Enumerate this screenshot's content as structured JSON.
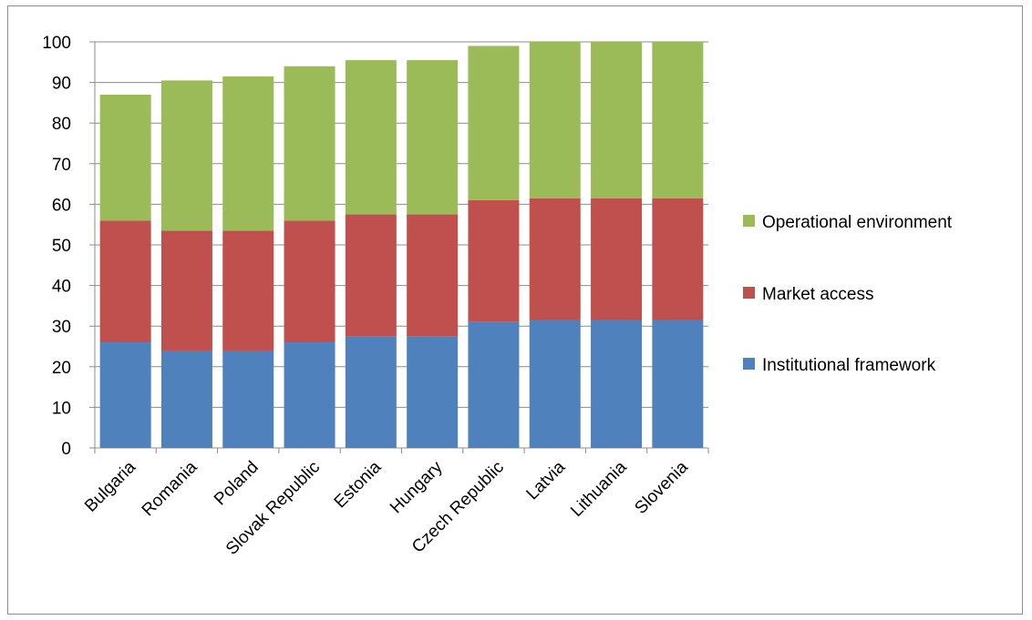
{
  "chart_data": {
    "type": "bar",
    "stacked": true,
    "categories": [
      "Bulgaria",
      "Romania",
      "Poland",
      "Slovak Republic",
      "Estonia",
      "Hungary",
      "Czech Republic",
      "Latvia",
      "Lithuania",
      "Slovenia"
    ],
    "series": [
      {
        "name": "Institutional  framework",
        "color": "#4f81bd",
        "values": [
          26,
          24,
          24,
          26,
          27.5,
          27.5,
          31,
          31.5,
          31.5,
          31.5
        ]
      },
      {
        "name": "Market access",
        "color": "#c0504d",
        "values": [
          30,
          29.5,
          29.5,
          30,
          30,
          30,
          30,
          30,
          30,
          30
        ]
      },
      {
        "name": "Operational environment",
        "color": "#9bbb59",
        "values": [
          31,
          37,
          38,
          38,
          38,
          38,
          38,
          38.5,
          38.5,
          38.5
        ]
      }
    ],
    "y_ticks": [
      "0",
      "10",
      "20",
      "30",
      "40",
      "50",
      "60",
      "70",
      "80",
      "90",
      "100"
    ],
    "ylim": [
      0,
      100
    ],
    "title": "",
    "xlabel": "",
    "ylabel": "",
    "grid": true,
    "legend_position": "right",
    "legend_order": [
      "Operational environment",
      "Market access",
      "Institutional  framework"
    ]
  }
}
